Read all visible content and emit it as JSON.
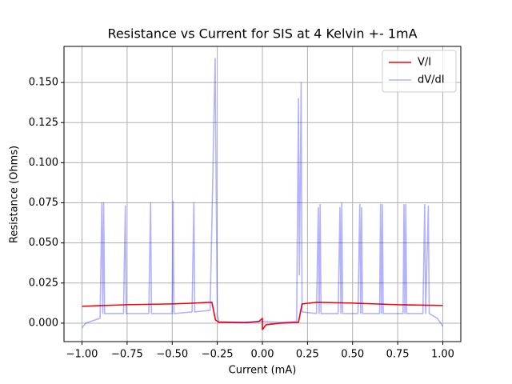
{
  "chart_data": {
    "type": "line",
    "title": "Resistance vs Current for SIS at 4 Kelvin +- 1mA",
    "xlabel": "Current (mA)",
    "ylabel": "Resistance (Ohms)",
    "xlim": [
      -1.1,
      1.1
    ],
    "ylim": [
      -0.0115,
      0.1725
    ],
    "xticks": [
      {
        "value": -1,
        "label": "−1.00"
      },
      {
        "value": -0.75,
        "label": "−0.75"
      },
      {
        "value": -0.5,
        "label": "−0.50"
      },
      {
        "value": -0.25,
        "label": "−0.25"
      },
      {
        "value": 0,
        "label": "0.00"
      },
      {
        "value": 0.25,
        "label": "0.25"
      },
      {
        "value": 0.5,
        "label": "0.50"
      },
      {
        "value": 0.75,
        "label": "0.75"
      },
      {
        "value": 1,
        "label": "1.00"
      }
    ],
    "yticks": [
      {
        "value": 0,
        "label": "0.000"
      },
      {
        "value": 0.025,
        "label": "0.025"
      },
      {
        "value": 0.05,
        "label": "0.050"
      },
      {
        "value": 0.075,
        "label": "0.075"
      },
      {
        "value": 0.1,
        "label": "0.100"
      },
      {
        "value": 0.125,
        "label": "0.125"
      },
      {
        "value": 0.15,
        "label": "0.150"
      }
    ],
    "grid": true,
    "legend": "upper right",
    "series": [
      {
        "name": "V/I",
        "color": "#ff0000",
        "opacity": 1,
        "x": [
          -1,
          -0.75,
          -0.5,
          -0.38,
          -0.28,
          -0.26,
          -0.24,
          -0.1,
          -0.02,
          0,
          0,
          0.02,
          0.1,
          0.2,
          0.22,
          0.3,
          0.5,
          0.75,
          1
        ],
        "values": [
          0.0105,
          0.0115,
          0.012,
          0.0125,
          0.013,
          0.002,
          0.0005,
          0.0003,
          0.001,
          0.003,
          -0.004,
          -0.001,
          0,
          0.0005,
          0.012,
          0.013,
          0.0125,
          0.0115,
          0.011
        ]
      },
      {
        "name": "dV/dI",
        "color": "#0000ff",
        "opacity": 0.3,
        "x": [
          -1,
          -0.98,
          -0.9,
          -0.89,
          -0.885,
          -0.88,
          -0.875,
          -0.77,
          -0.76,
          -0.755,
          -0.63,
          -0.62,
          -0.615,
          -0.5,
          -0.495,
          -0.49,
          -0.39,
          -0.38,
          -0.375,
          -0.29,
          -0.275,
          -0.27,
          -0.262,
          -0.255,
          -0.25,
          -0.24,
          -0.1,
          0,
          0.1,
          0.19,
          0.2,
          0.205,
          0.215,
          0.22,
          0.3,
          0.31,
          0.315,
          0.32,
          0.325,
          0.42,
          0.43,
          0.435,
          0.44,
          0.445,
          0.53,
          0.54,
          0.545,
          0.55,
          0.555,
          0.65,
          0.655,
          0.66,
          0.665,
          0.67,
          0.78,
          0.785,
          0.79,
          0.795,
          0.8,
          0.89,
          0.9,
          0.905,
          0.92,
          0.925,
          0.97,
          1
        ],
        "values": [
          -0.003,
          0,
          0.003,
          0.075,
          0.006,
          0.075,
          0.006,
          0.006,
          0.073,
          0.006,
          0.006,
          0.075,
          0.006,
          0.006,
          0.076,
          0.006,
          0.007,
          0.075,
          0.007,
          0.008,
          0.09,
          0.12,
          0.165,
          0.07,
          0.005,
          0.001,
          0.0005,
          0.001,
          0.0005,
          0.001,
          0.14,
          0.03,
          0.15,
          0.007,
          0.006,
          0.072,
          0.006,
          0.074,
          0.006,
          0.006,
          0.072,
          0.006,
          0.075,
          0.006,
          0.006,
          0.074,
          0.006,
          0.072,
          0.006,
          0.006,
          0.074,
          0.006,
          0.074,
          0.006,
          0.006,
          0.074,
          0.006,
          0.074,
          0.006,
          0.006,
          0.074,
          0.006,
          0.073,
          0.006,
          0.003,
          -0.002
        ]
      }
    ]
  }
}
